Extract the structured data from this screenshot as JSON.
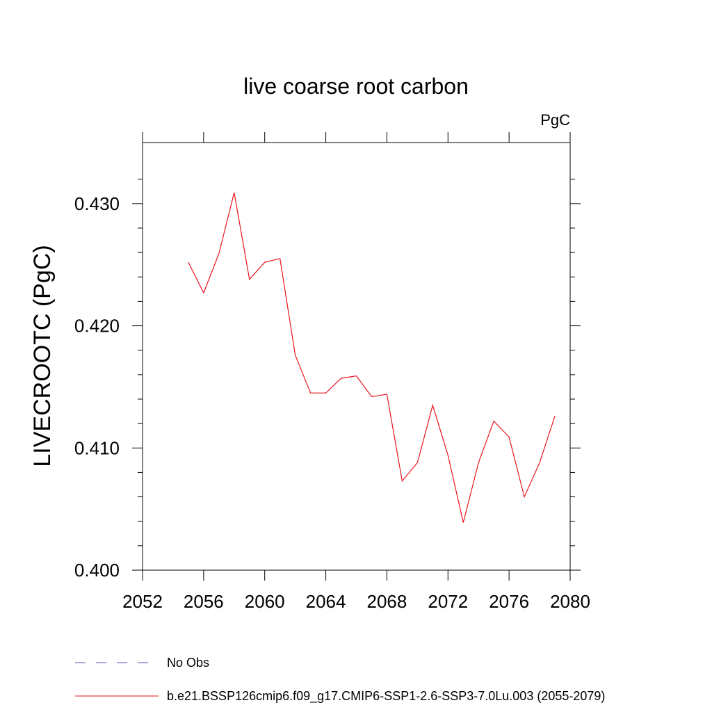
{
  "chart_data": {
    "type": "line",
    "title": "live coarse root carbon",
    "units": "PgC",
    "ylabel": "LIVECROOTC  (PgC)",
    "xlabel": "",
    "xlim": [
      2052,
      2080
    ],
    "ylim": [
      0.4,
      0.435
    ],
    "xticks": [
      2052,
      2056,
      2060,
      2064,
      2068,
      2072,
      2076,
      2080
    ],
    "xtick_labels": [
      "2052",
      "2056",
      "2060",
      "2064",
      "2068",
      "2072",
      "2076",
      "2080"
    ],
    "yticks": [
      0.4,
      0.41,
      0.42,
      0.43
    ],
    "ytick_labels": [
      "0.400",
      "0.410",
      "0.420",
      "0.430"
    ],
    "series": [
      {
        "name": "b.e21.BSSP126cmip6.f09_g17.CMIP6-SSP1-2.6-SSP3-7.0Lu.003 (2055-2079)",
        "color": "#e8141c",
        "x": [
          2055,
          2056,
          2057,
          2058,
          2059,
          2060,
          2061,
          2062,
          2063,
          2064,
          2065,
          2066,
          2067,
          2068,
          2069,
          2070,
          2071,
          2072,
          2073,
          2074,
          2075,
          2076,
          2077,
          2078,
          2079
        ],
        "values": [
          0.4252,
          0.4227,
          0.4259,
          0.4309,
          0.4238,
          0.4252,
          0.4255,
          0.4176,
          0.4145,
          0.4145,
          0.4157,
          0.4159,
          0.4142,
          0.4144,
          0.4073,
          0.4088,
          0.4135,
          0.4094,
          0.4039,
          0.4088,
          0.4122,
          0.4109,
          0.406,
          0.4088,
          0.4126
        ]
      }
    ],
    "legend": [
      {
        "label": "No Obs",
        "color": "#5a4fb0",
        "style": "dashed"
      },
      {
        "label": "b.e21.BSSP126cmip6.f09_g17.CMIP6-SSP1-2.6-SSP3-7.0Lu.003 (2055-2079)",
        "color": "#e8141c",
        "style": "solid"
      }
    ]
  }
}
